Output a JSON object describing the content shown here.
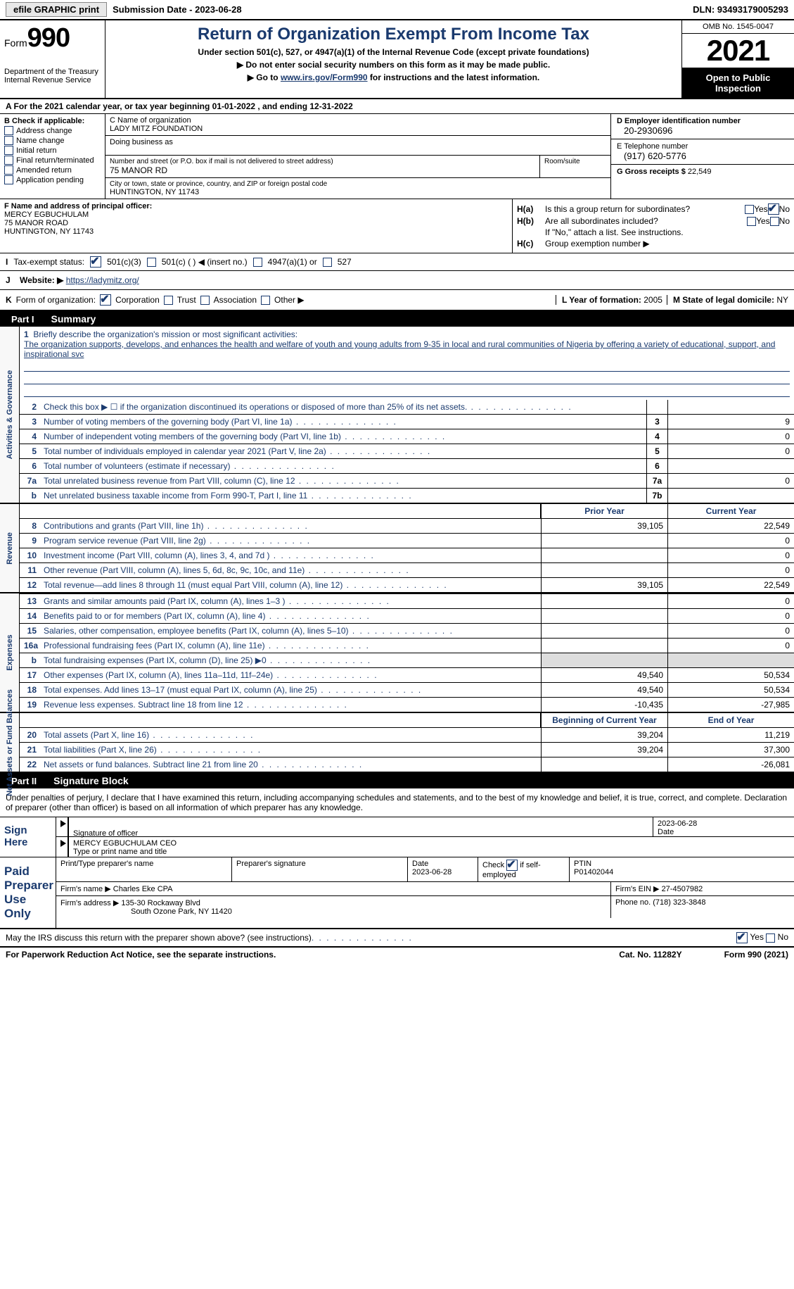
{
  "topbar": {
    "efile_label": "efile GRAPHIC print",
    "submission_label": "Submission Date - 2023-06-28",
    "dln_label": "DLN: 93493179005293"
  },
  "header": {
    "form_label": "Form",
    "form_number": "990",
    "dept": "Department of the Treasury\nInternal Revenue Service",
    "title": "Return of Organization Exempt From Income Tax",
    "subtitle": "Under section 501(c), 527, or 4947(a)(1) of the Internal Revenue Code (except private foundations)",
    "note1": "▶ Do not enter social security numbers on this form as it may be made public.",
    "note2_prefix": "▶ Go to ",
    "note2_link": "www.irs.gov/Form990",
    "note2_suffix": " for instructions and the latest information.",
    "omb": "OMB No. 1545-0047",
    "year": "2021",
    "inspection": "Open to Public Inspection"
  },
  "rowA": "A For the 2021 calendar year, or tax year beginning 01-01-2022   , and ending 12-31-2022",
  "colB": {
    "label": "B Check if applicable:",
    "opts": [
      "Address change",
      "Name change",
      "Initial return",
      "Final return/terminated",
      "Amended return",
      "Application pending"
    ]
  },
  "colC": {
    "name_label": "C Name of organization",
    "name": "LADY MITZ FOUNDATION",
    "dba_label": "Doing business as",
    "dba": "",
    "street_label": "Number and street (or P.O. box if mail is not delivered to street address)",
    "street": "75 MANOR RD",
    "room_label": "Room/suite",
    "city_label": "City or town, state or province, country, and ZIP or foreign postal code",
    "city": "HUNTINGTON, NY  11743"
  },
  "colD": {
    "ein_label": "D Employer identification number",
    "ein": "20-2930696",
    "phone_label": "E Telephone number",
    "phone": "(917) 620-5776",
    "gross_label": "G Gross receipts $",
    "gross": "22,549"
  },
  "colF": {
    "label": "F Name and address of principal officer:",
    "name": "MERCY EGBUCHULAM",
    "street": "75 MANOR ROAD",
    "city": "HUNTINGTON, NY  11743"
  },
  "colH": {
    "a_label": "H(a)",
    "a_text": "Is this a group return for subordinates?",
    "a_no_checked": true,
    "b_label": "H(b)",
    "b_text": "Are all subordinates included?",
    "b_note": "If \"No,\" attach a list. See instructions.",
    "c_label": "H(c)",
    "c_text": "Group exemption number ▶"
  },
  "rowI": {
    "label": "I",
    "text": "Tax-exempt status:",
    "opt1": "501(c)(3)",
    "opt2": "501(c) (  ) ◀ (insert no.)",
    "opt3": "4947(a)(1) or",
    "opt4": "527"
  },
  "rowJ": {
    "label": "J",
    "text": "Website: ▶",
    "url": "https://ladymitz.org/"
  },
  "rowK": {
    "label": "K",
    "text": "Form of organization:",
    "opts": [
      "Corporation",
      "Trust",
      "Association",
      "Other ▶"
    ],
    "L_label": "L Year of formation:",
    "L_val": "2005",
    "M_label": "M State of legal domicile:",
    "M_val": "NY"
  },
  "part1": {
    "tab": "Part I",
    "label": "Summary"
  },
  "mission": {
    "num": "1",
    "label": "Briefly describe the organization's mission or most significant activities:",
    "text": "The organization supports, develops, and enhances the health and welfare of youth and young adults from 9-35 in local and rural communities of Nigeria by offering a variety of educational, support, and inspirational svc"
  },
  "gov_lines": [
    {
      "n": "2",
      "d": "Check this box ▶ ☐ if the organization discontinued its operations or disposed of more than 25% of its net assets.",
      "box": "",
      "v": ""
    },
    {
      "n": "3",
      "d": "Number of voting members of the governing body (Part VI, line 1a)",
      "box": "3",
      "v": "9"
    },
    {
      "n": "4",
      "d": "Number of independent voting members of the governing body (Part VI, line 1b)",
      "box": "4",
      "v": "0"
    },
    {
      "n": "5",
      "d": "Total number of individuals employed in calendar year 2021 (Part V, line 2a)",
      "box": "5",
      "v": "0"
    },
    {
      "n": "6",
      "d": "Total number of volunteers (estimate if necessary)",
      "box": "6",
      "v": ""
    },
    {
      "n": "7a",
      "d": "Total unrelated business revenue from Part VIII, column (C), line 12",
      "box": "7a",
      "v": "0"
    },
    {
      "n": "b",
      "d": "Net unrelated business taxable income from Form 990-T, Part I, line 11",
      "box": "7b",
      "v": ""
    }
  ],
  "rev_header": {
    "prior": "Prior Year",
    "current": "Current Year"
  },
  "revenue": [
    {
      "n": "8",
      "d": "Contributions and grants (Part VIII, line 1h)",
      "p": "39,105",
      "c": "22,549"
    },
    {
      "n": "9",
      "d": "Program service revenue (Part VIII, line 2g)",
      "p": "",
      "c": "0"
    },
    {
      "n": "10",
      "d": "Investment income (Part VIII, column (A), lines 3, 4, and 7d )",
      "p": "",
      "c": "0"
    },
    {
      "n": "11",
      "d": "Other revenue (Part VIII, column (A), lines 5, 6d, 8c, 9c, 10c, and 11e)",
      "p": "",
      "c": "0"
    },
    {
      "n": "12",
      "d": "Total revenue—add lines 8 through 11 (must equal Part VIII, column (A), line 12)",
      "p": "39,105",
      "c": "22,549"
    }
  ],
  "expenses": [
    {
      "n": "13",
      "d": "Grants and similar amounts paid (Part IX, column (A), lines 1–3 )",
      "p": "",
      "c": "0"
    },
    {
      "n": "14",
      "d": "Benefits paid to or for members (Part IX, column (A), line 4)",
      "p": "",
      "c": "0"
    },
    {
      "n": "15",
      "d": "Salaries, other compensation, employee benefits (Part IX, column (A), lines 5–10)",
      "p": "",
      "c": "0"
    },
    {
      "n": "16a",
      "d": "Professional fundraising fees (Part IX, column (A), line 11e)",
      "p": "",
      "c": "0"
    },
    {
      "n": "b",
      "d": "Total fundraising expenses (Part IX, column (D), line 25) ▶0",
      "p": "shaded",
      "c": "shaded"
    },
    {
      "n": "17",
      "d": "Other expenses (Part IX, column (A), lines 11a–11d, 11f–24e)",
      "p": "49,540",
      "c": "50,534"
    },
    {
      "n": "18",
      "d": "Total expenses. Add lines 13–17 (must equal Part IX, column (A), line 25)",
      "p": "49,540",
      "c": "50,534"
    },
    {
      "n": "19",
      "d": "Revenue less expenses. Subtract line 18 from line 12",
      "p": "-10,435",
      "c": "-27,985"
    }
  ],
  "net_header": {
    "beg": "Beginning of Current Year",
    "end": "End of Year"
  },
  "netassets": [
    {
      "n": "20",
      "d": "Total assets (Part X, line 16)",
      "p": "39,204",
      "c": "11,219"
    },
    {
      "n": "21",
      "d": "Total liabilities (Part X, line 26)",
      "p": "39,204",
      "c": "37,300"
    },
    {
      "n": "22",
      "d": "Net assets or fund balances. Subtract line 21 from line 20",
      "p": "",
      "c": "-26,081"
    }
  ],
  "side_labels": {
    "gov": "Activities & Governance",
    "rev": "Revenue",
    "exp": "Expenses",
    "net": "Net Assets or Fund Balances"
  },
  "part2": {
    "tab": "Part II",
    "label": "Signature Block"
  },
  "sig_intro": "Under penalties of perjury, I declare that I have examined this return, including accompanying schedules and statements, and to the best of my knowledge and belief, it is true, correct, and complete. Declaration of preparer (other than officer) is based on all information of which preparer has any knowledge.",
  "sign_here": {
    "label": "Sign Here",
    "sig_label": "Signature of officer",
    "date": "2023-06-28",
    "date_label": "Date",
    "name": "MERCY EGBUCHULAM  CEO",
    "name_label": "Type or print name and title"
  },
  "paid": {
    "label": "Paid Preparer Use Only",
    "print_label": "Print/Type preparer's name",
    "sig_label": "Preparer's signature",
    "date_label": "Date",
    "date": "2023-06-28",
    "check_label": "Check",
    "self_emp": "if self-employed",
    "ptin_label": "PTIN",
    "ptin": "P01402044",
    "firm_name_label": "Firm's name    ▶",
    "firm_name": "Charles Eke CPA",
    "firm_ein_label": "Firm's EIN ▶",
    "firm_ein": "27-4507982",
    "firm_addr_label": "Firm's address ▶",
    "firm_addr1": "135-30 Rockaway Blvd",
    "firm_addr2": "South Ozone Park, NY  11420",
    "phone_label": "Phone no.",
    "phone": "(718) 323-3848"
  },
  "discuss": {
    "text": "May the IRS discuss this return with the preparer shown above? (see instructions)",
    "yes_checked": true
  },
  "footer": {
    "pra": "For Paperwork Reduction Act Notice, see the separate instructions.",
    "cat": "Cat. No. 11282Y",
    "form": "Form 990 (2021)"
  },
  "colors": {
    "blue": "#1a3a6e",
    "black": "#000000",
    "shaded": "#dddddd"
  }
}
